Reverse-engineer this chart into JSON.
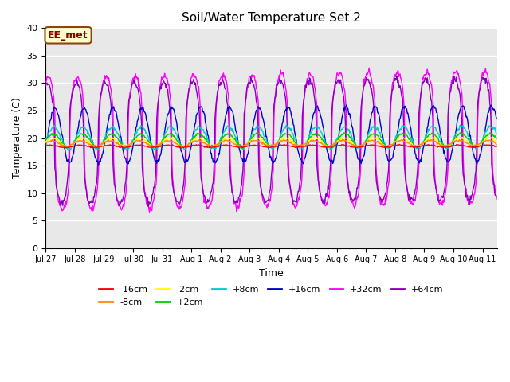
{
  "title": "Soil/Water Temperature Set 2",
  "xlabel": "Time",
  "ylabel": "Temperature (C)",
  "ylim": [
    0,
    40
  ],
  "yticks": [
    0,
    5,
    10,
    15,
    20,
    25,
    30,
    35,
    40
  ],
  "x_tick_labels": [
    "Jul 27",
    "Jul 28",
    "Jul 29",
    "Jul 30",
    "Jul 31",
    "Aug 1",
    "Aug 2",
    "Aug 3",
    "Aug 4",
    "Aug 5",
    "Aug 6",
    "Aug 7",
    "Aug 8",
    "Aug 9",
    "Aug 10",
    "Aug 11"
  ],
  "annotation_text": "EE_met",
  "annotation_bg": "#FFFFCC",
  "annotation_border": "#8B4513",
  "series_colors": {
    "-16cm": "#FF0000",
    "-8cm": "#FF8800",
    "-2cm": "#FFFF00",
    "+2cm": "#00CC00",
    "+8cm": "#00CCCC",
    "+16cm": "#0000CC",
    "+32cm": "#FF00FF",
    "+64cm": "#8800BB"
  },
  "background_color": "#E8E8E8",
  "grid_color": "#FFFFFF",
  "n_days": 15.5,
  "figsize": [
    6.4,
    4.8
  ],
  "dpi": 100
}
